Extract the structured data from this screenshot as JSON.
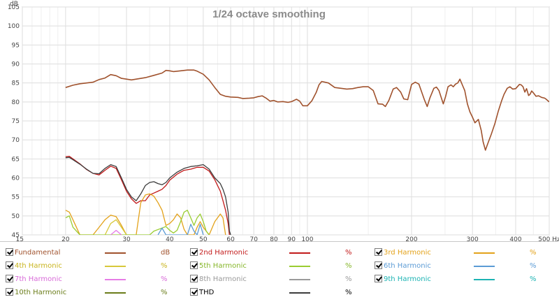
{
  "chart_data": {
    "type": "line",
    "title": "1/24 octave smoothing",
    "ylabel": "dB",
    "x_unit": "Hz",
    "x_scale": "log",
    "xlim": [
      15,
      500
    ],
    "ylim": [
      45,
      105
    ],
    "x_ticks": [
      15,
      20,
      30,
      40,
      50,
      60,
      70,
      80,
      90,
      100,
      200,
      300,
      400,
      500
    ],
    "x_tick_labels": [
      "15",
      "20",
      "30",
      "40",
      "50",
      "60",
      "70",
      "80",
      "90",
      "100",
      "200",
      "300",
      "400",
      "500 Hz"
    ],
    "y_ticks": [
      45,
      50,
      55,
      60,
      65,
      70,
      75,
      80,
      85,
      90,
      95,
      100,
      105
    ],
    "grid": true,
    "series": [
      {
        "name": "Fundamental",
        "color": "#a0522d",
        "unit": "dB",
        "points": [
          [
            20,
            83.8
          ],
          [
            21,
            84.4
          ],
          [
            22,
            84.8
          ],
          [
            23,
            85.0
          ],
          [
            24,
            85.2
          ],
          [
            25,
            85.9
          ],
          [
            26,
            86.3
          ],
          [
            27,
            87.2
          ],
          [
            28,
            86.9
          ],
          [
            29,
            86.2
          ],
          [
            30,
            86.0
          ],
          [
            31,
            85.8
          ],
          [
            32,
            86.0
          ],
          [
            34,
            86.4
          ],
          [
            36,
            87.0
          ],
          [
            38,
            87.6
          ],
          [
            39,
            88.3
          ],
          [
            40,
            88.2
          ],
          [
            41,
            88.0
          ],
          [
            43,
            88.2
          ],
          [
            45,
            88.4
          ],
          [
            47,
            88.4
          ],
          [
            48,
            88.1
          ],
          [
            50,
            87.3
          ],
          [
            52,
            85.8
          ],
          [
            54,
            83.8
          ],
          [
            56,
            82.0
          ],
          [
            58,
            81.5
          ],
          [
            60,
            81.3
          ],
          [
            63,
            81.2
          ],
          [
            65,
            80.9
          ],
          [
            68,
            81.0
          ],
          [
            70,
            81.1
          ],
          [
            72,
            81.4
          ],
          [
            74,
            81.6
          ],
          [
            76,
            81.0
          ],
          [
            78,
            80.2
          ],
          [
            80,
            80.4
          ],
          [
            82,
            80.0
          ],
          [
            85,
            80.1
          ],
          [
            88,
            79.9
          ],
          [
            90,
            80.1
          ],
          [
            93,
            80.7
          ],
          [
            95,
            80.2
          ],
          [
            97,
            79.0
          ],
          [
            100,
            79.0
          ],
          [
            103,
            80.3
          ],
          [
            106,
            82.5
          ],
          [
            108,
            84.5
          ],
          [
            110,
            85.4
          ],
          [
            115,
            85.0
          ],
          [
            120,
            83.8
          ],
          [
            125,
            83.6
          ],
          [
            130,
            83.4
          ],
          [
            135,
            83.5
          ],
          [
            140,
            83.8
          ],
          [
            145,
            84.0
          ],
          [
            150,
            84.0
          ],
          [
            155,
            83.0
          ],
          [
            160,
            79.5
          ],
          [
            165,
            79.4
          ],
          [
            168,
            78.8
          ],
          [
            172,
            80.4
          ],
          [
            177,
            83.4
          ],
          [
            181,
            83.8
          ],
          [
            186,
            82.6
          ],
          [
            190,
            80.8
          ],
          [
            195,
            80.6
          ],
          [
            200,
            84.6
          ],
          [
            205,
            85.2
          ],
          [
            210,
            84.7
          ],
          [
            218,
            80.5
          ],
          [
            222,
            78.8
          ],
          [
            226,
            81.1
          ],
          [
            232,
            83.6
          ],
          [
            236,
            83.9
          ],
          [
            240,
            83.0
          ],
          [
            247,
            79.5
          ],
          [
            251,
            81.5
          ],
          [
            255,
            84.0
          ],
          [
            260,
            84.5
          ],
          [
            264,
            84.0
          ],
          [
            268,
            84.7
          ],
          [
            272,
            85.0
          ],
          [
            276,
            86.0
          ],
          [
            281,
            84.3
          ],
          [
            285,
            83.0
          ],
          [
            290,
            79.5
          ],
          [
            295,
            77.4
          ],
          [
            300,
            76.0
          ],
          [
            305,
            74.5
          ],
          [
            312,
            75.4
          ],
          [
            318,
            72.5
          ],
          [
            322,
            69.5
          ],
          [
            327,
            67.3
          ],
          [
            332,
            69.0
          ],
          [
            340,
            71.5
          ],
          [
            348,
            74.2
          ],
          [
            356,
            77.5
          ],
          [
            364,
            80.2
          ],
          [
            370,
            82.0
          ],
          [
            378,
            83.6
          ],
          [
            385,
            84.0
          ],
          [
            392,
            83.4
          ],
          [
            400,
            83.5
          ],
          [
            410,
            84.6
          ],
          [
            415,
            84.5
          ],
          [
            420,
            84.0
          ],
          [
            425,
            82.6
          ],
          [
            430,
            83.5
          ],
          [
            436,
            81.7
          ],
          [
            440,
            82.0
          ],
          [
            445,
            82.9
          ],
          [
            450,
            82.4
          ],
          [
            458,
            81.5
          ],
          [
            466,
            81.6
          ],
          [
            475,
            81.2
          ],
          [
            485,
            81.0
          ],
          [
            490,
            80.7
          ],
          [
            500,
            80.0
          ]
        ]
      },
      {
        "name": "2nd Harmonic",
        "color": "#c21a1a",
        "unit": "%",
        "points": [
          [
            20,
            65.6
          ],
          [
            20.5,
            65.7
          ],
          [
            21,
            65.0
          ],
          [
            22,
            63.7
          ],
          [
            23,
            62.2
          ],
          [
            24,
            61.2
          ],
          [
            25,
            60.8
          ],
          [
            26,
            62.0
          ],
          [
            27,
            63.1
          ],
          [
            28,
            62.5
          ],
          [
            29,
            59.5
          ],
          [
            30,
            56.5
          ],
          [
            31,
            54.5
          ],
          [
            32,
            53.3
          ],
          [
            33,
            54.0
          ],
          [
            34,
            54.0
          ],
          [
            35,
            55.5
          ],
          [
            36,
            56.0
          ],
          [
            37,
            56.5
          ],
          [
            38,
            57.0
          ],
          [
            39,
            58.0
          ],
          [
            40,
            59.4
          ],
          [
            42,
            61.0
          ],
          [
            44,
            62.0
          ],
          [
            46,
            62.3
          ],
          [
            48,
            62.8
          ],
          [
            50,
            62.8
          ],
          [
            52,
            61.8
          ],
          [
            54,
            59.5
          ],
          [
            56,
            56.5
          ],
          [
            57,
            54.0
          ],
          [
            58,
            51.5
          ],
          [
            59,
            48.0
          ],
          [
            59.5,
            45.0
          ]
        ]
      },
      {
        "name": "3rd Harmonic",
        "color": "#e3a21a",
        "unit": "%",
        "points": [
          [
            20,
            51.5
          ],
          [
            20.5,
            51.0
          ],
          [
            21,
            49.0
          ],
          [
            22,
            45.0
          ],
          [
            24,
            45.0
          ],
          [
            25,
            47.0
          ],
          [
            26,
            49.0
          ],
          [
            27,
            50.2
          ],
          [
            28,
            49.8
          ],
          [
            29,
            47.5
          ],
          [
            30,
            45.0
          ],
          [
            32,
            45.0
          ],
          [
            33,
            53.5
          ],
          [
            34,
            55.5
          ],
          [
            35,
            55.8
          ],
          [
            36,
            55.2
          ],
          [
            37,
            53.5
          ],
          [
            38,
            51.5
          ],
          [
            39,
            47.5
          ],
          [
            40,
            48.0
          ],
          [
            41,
            49.0
          ],
          [
            42,
            50.5
          ],
          [
            43,
            49.5
          ],
          [
            44,
            46.5
          ],
          [
            45,
            45.0
          ],
          [
            47,
            45.0
          ],
          [
            48,
            47.0
          ],
          [
            49,
            48.5
          ],
          [
            50,
            47.0
          ],
          [
            52,
            45.0
          ],
          [
            54,
            48.5
          ],
          [
            56,
            50.5
          ],
          [
            57,
            49.5
          ],
          [
            58,
            45.0
          ]
        ]
      },
      {
        "name": "4th Harmonic",
        "color": "#d7c83a",
        "unit": "%",
        "points": [
          [
            26,
            45.0
          ],
          [
            27,
            48.0
          ],
          [
            28,
            49.0
          ],
          [
            29,
            47.0
          ],
          [
            30,
            45.0
          ]
        ]
      },
      {
        "name": "5th Harmonic",
        "color": "#9acd32",
        "unit": "%",
        "points": [
          [
            20,
            49.5
          ],
          [
            20.5,
            50.0
          ],
          [
            21,
            47.0
          ],
          [
            22,
            45.0
          ],
          [
            35,
            45.0
          ],
          [
            36,
            46.0
          ],
          [
            38,
            46.8
          ],
          [
            39,
            47.2
          ],
          [
            40,
            46.2
          ],
          [
            41,
            45.5
          ],
          [
            42,
            46.2
          ],
          [
            43,
            48.5
          ],
          [
            44,
            51.0
          ],
          [
            45,
            51.5
          ],
          [
            46,
            49.5
          ],
          [
            47,
            47.5
          ],
          [
            48,
            49.5
          ],
          [
            49,
            50.5
          ],
          [
            50,
            48.5
          ],
          [
            51,
            46.0
          ],
          [
            52,
            45.0
          ]
        ]
      },
      {
        "name": "6th Harmonic",
        "color": "#5b9bd5",
        "unit": "%",
        "points": [
          [
            37,
            45.0
          ],
          [
            38,
            46.8
          ],
          [
            39,
            45.0
          ],
          [
            45,
            45.0
          ],
          [
            46,
            47.8
          ],
          [
            47,
            46.0
          ],
          [
            48,
            45.0
          ],
          [
            49,
            47.8
          ],
          [
            50,
            45.0
          ]
        ]
      },
      {
        "name": "7th Harmonic",
        "color": "#e67ce6",
        "unit": "%",
        "points": [
          [
            27,
            45.0
          ],
          [
            28,
            46.2
          ],
          [
            29,
            45.0
          ]
        ]
      },
      {
        "name": "8th Harmonic",
        "color": "#9a9a9a",
        "unit": "%",
        "points": []
      },
      {
        "name": "9th Harmonic",
        "color": "#1cb3b3",
        "unit": "%",
        "points": []
      },
      {
        "name": "10th Harmonic",
        "color": "#6b7d1a",
        "unit": "%",
        "points": []
      },
      {
        "name": "THD",
        "color": "#3c3c3c",
        "unit": "%",
        "points": [
          [
            20,
            65.3
          ],
          [
            20.5,
            65.4
          ],
          [
            21,
            64.8
          ],
          [
            22,
            63.6
          ],
          [
            23,
            62.3
          ],
          [
            24,
            61.2
          ],
          [
            25,
            61.1
          ],
          [
            26,
            62.5
          ],
          [
            27,
            63.5
          ],
          [
            28,
            63.0
          ],
          [
            29,
            60.0
          ],
          [
            30,
            57.0
          ],
          [
            31,
            55.0
          ],
          [
            32,
            54.0
          ],
          [
            33,
            55.8
          ],
          [
            34,
            58.0
          ],
          [
            35,
            58.8
          ],
          [
            36,
            59.0
          ],
          [
            37,
            58.5
          ],
          [
            38,
            58.2
          ],
          [
            39,
            58.8
          ],
          [
            40,
            60.0
          ],
          [
            42,
            61.5
          ],
          [
            44,
            62.5
          ],
          [
            46,
            63.0
          ],
          [
            48,
            63.2
          ],
          [
            50,
            63.5
          ],
          [
            52,
            62.3
          ],
          [
            54,
            60.0
          ],
          [
            56,
            58.5
          ],
          [
            57,
            57.0
          ],
          [
            58,
            55.0
          ],
          [
            59,
            51.0
          ],
          [
            59.5,
            46.0
          ],
          [
            60,
            45.0
          ]
        ]
      }
    ]
  },
  "legend": [
    {
      "name": "Fundamental",
      "unit": "dB",
      "color": "#a0522d",
      "label_color": "#a0522d"
    },
    {
      "name": "2nd Harmonic",
      "unit": "%",
      "color": "#c21a1a",
      "label_color": "#c21a1a"
    },
    {
      "name": "3rd Harmonic",
      "unit": "%",
      "color": "#e3a21a",
      "label_color": "#e3a21a"
    },
    {
      "name": "4th Harmonic",
      "unit": "%",
      "color": "#d7c83a",
      "label_color": "#c8b41e"
    },
    {
      "name": "5th Harmonic",
      "unit": "%",
      "color": "#9acd32",
      "label_color": "#86b62a"
    },
    {
      "name": "6th Harmonic",
      "unit": "%",
      "color": "#5b9bd5",
      "label_color": "#5b9bd5"
    },
    {
      "name": "7th Harmonic",
      "unit": "%",
      "color": "#e67ce6",
      "label_color": "#d86ad8"
    },
    {
      "name": "8th Harmonic",
      "unit": "%",
      "color": "#9a9a9a",
      "label_color": "#9a9a9a"
    },
    {
      "name": "9th Harmonic",
      "unit": "%",
      "color": "#1cb3b3",
      "label_color": "#1cb3b3"
    },
    {
      "name": "10th Harmonic",
      "unit": "%",
      "color": "#6b7d1a",
      "label_color": "#6b7d1a"
    },
    {
      "name": "THD",
      "unit": "%",
      "color": "#3c3c3c",
      "label_color": "#000000"
    }
  ]
}
